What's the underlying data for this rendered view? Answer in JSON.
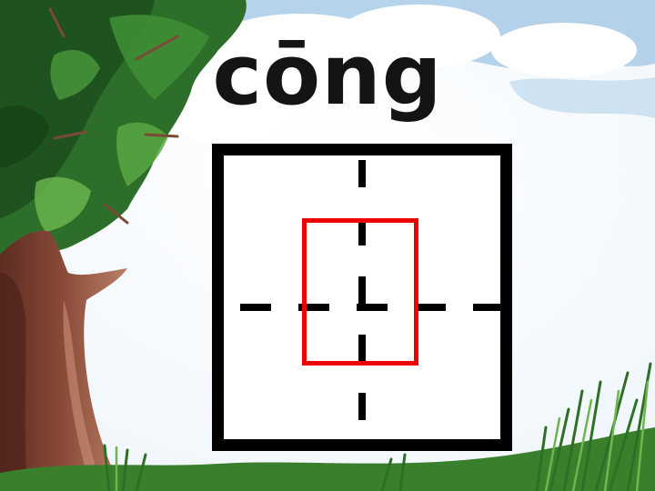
{
  "pinyin": "cōng",
  "background": {
    "sky": "#f2f7fb",
    "cloud": "#ffffff",
    "sky_blue": "#9fc6e4",
    "foliage_dark": "#1f5a22",
    "foliage_mid": "#2f7d2e",
    "foliage_light": "#4f9e3a",
    "trunk": "#7a4030",
    "trunk_light": "#b0735a",
    "grass": "#3f8a2e"
  },
  "writing_grid": {
    "frame_color": "#000000",
    "guide_color": "#000000",
    "highlight_color": "#ee0000"
  }
}
